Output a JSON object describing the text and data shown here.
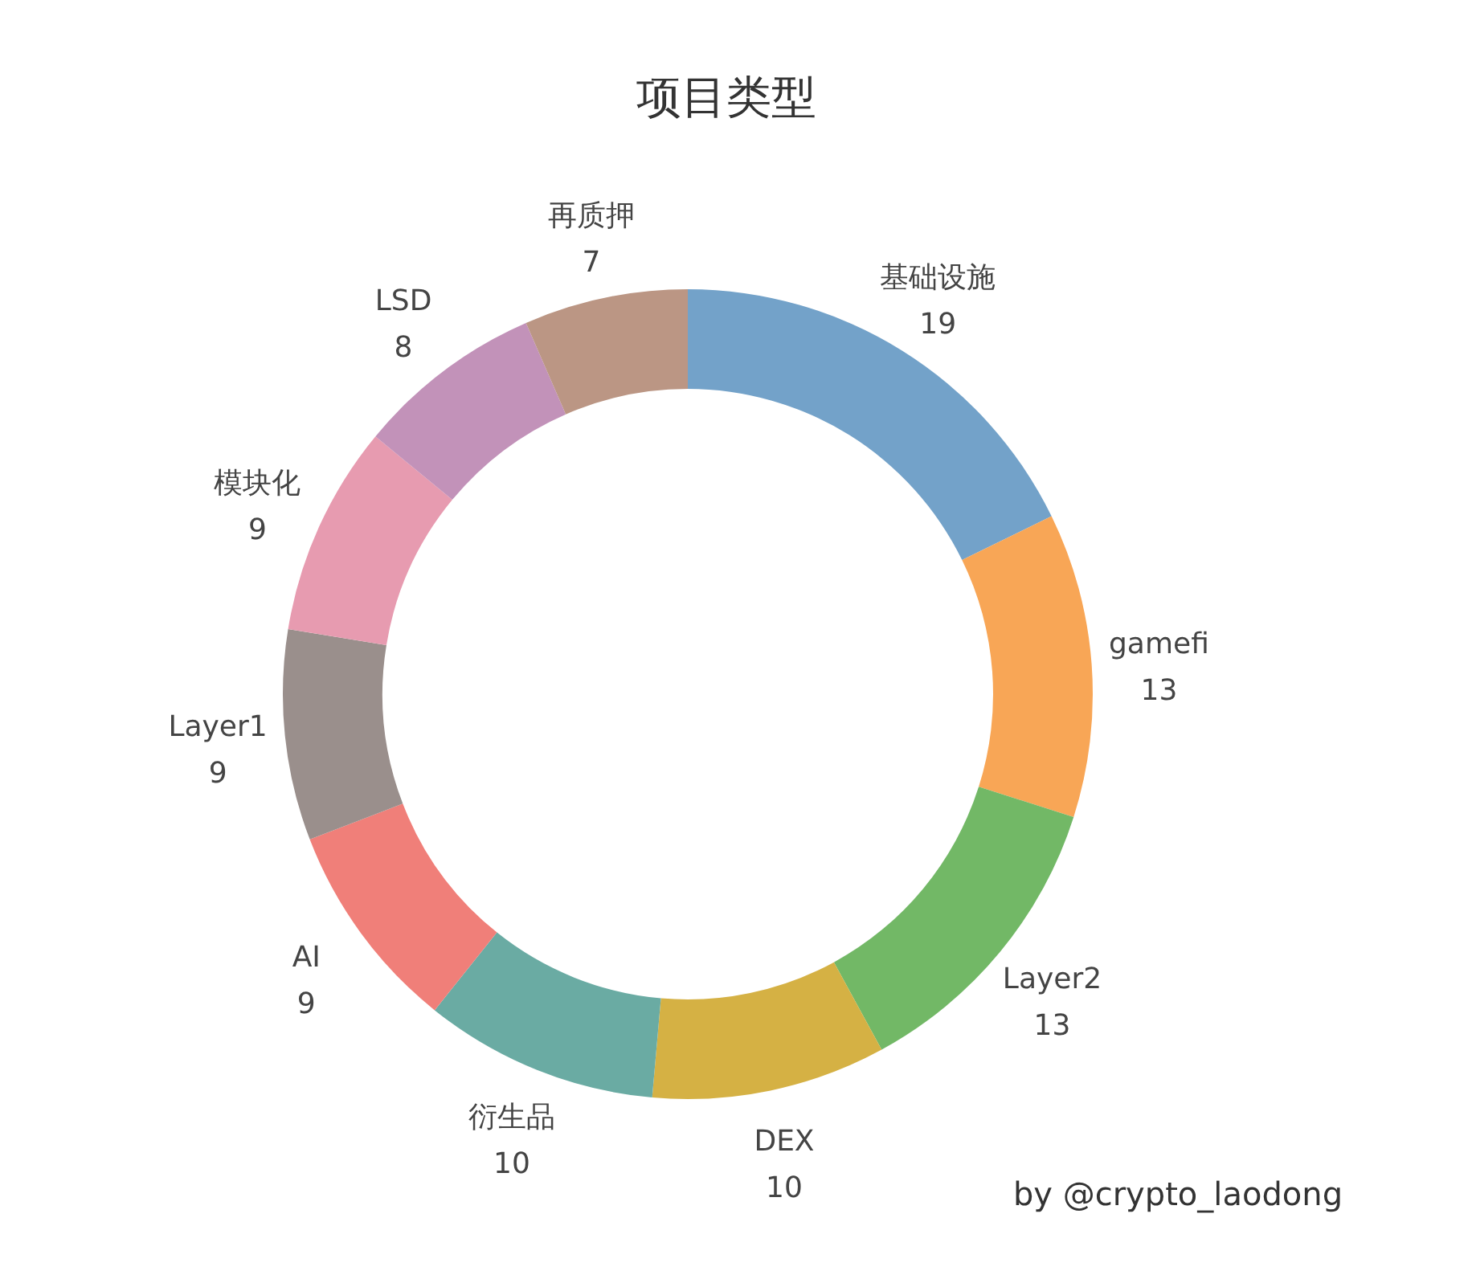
{
  "chart_data": {
    "type": "donut",
    "title": "项目类型",
    "categories": [
      "基础设施",
      "gamefi",
      "Layer2",
      "DEX",
      "衍生品",
      "AI",
      "Layer1",
      "模块化",
      "LSD",
      "再质押"
    ],
    "values": [
      19,
      13,
      13,
      10,
      10,
      9,
      9,
      9,
      8,
      7
    ],
    "colors": [
      "#73a2c9",
      "#f8a656",
      "#72b866",
      "#d5b144",
      "#6aaba3",
      "#f07f79",
      "#9a8f8c",
      "#e79bb0",
      "#c292b9",
      "#bb9684"
    ],
    "data_labels": true,
    "annotations": [
      "by @crypto_laodong"
    ]
  }
}
